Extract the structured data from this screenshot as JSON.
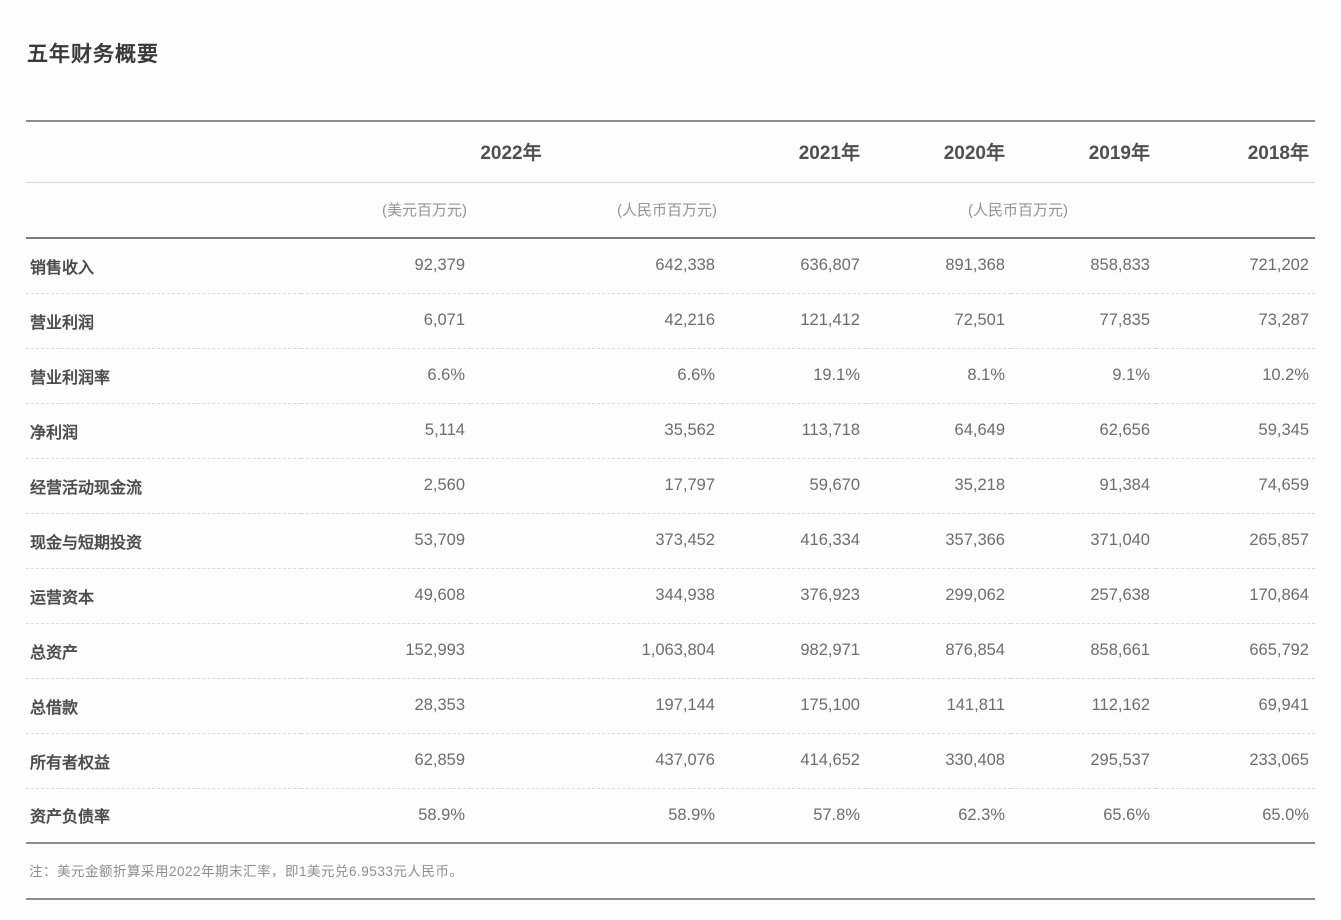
{
  "page": {
    "title": "五年财务概要"
  },
  "table": {
    "col_headers": {
      "y2022": "2022年",
      "y2021": "2021年",
      "y2020": "2020年",
      "y2019": "2019年",
      "y2018": "2018年"
    },
    "unit_headers": {
      "usd": "(美元百万元)",
      "rmb_2022": "(人民币百万元)",
      "rmb_prior_years": "(人民币百万元)"
    },
    "rows": [
      {
        "label": "销售收入",
        "values": [
          "92,379",
          "642,338",
          "636,807",
          "891,368",
          "858,833",
          "721,202"
        ]
      },
      {
        "label": "营业利润",
        "values": [
          "6,071",
          "42,216",
          "121,412",
          "72,501",
          "77,835",
          "73,287"
        ]
      },
      {
        "label": "营业利润率",
        "values": [
          "6.6%",
          "6.6%",
          "19.1%",
          "8.1%",
          "9.1%",
          "10.2%"
        ]
      },
      {
        "label": "净利润",
        "values": [
          "5,114",
          "35,562",
          "113,718",
          "64,649",
          "62,656",
          "59,345"
        ]
      },
      {
        "label": "经营活动现金流",
        "values": [
          "2,560",
          "17,797",
          "59,670",
          "35,218",
          "91,384",
          "74,659"
        ]
      },
      {
        "label": "现金与短期投资",
        "values": [
          "53,709",
          "373,452",
          "416,334",
          "357,366",
          "371,040",
          "265,857"
        ]
      },
      {
        "label": "运营资本",
        "values": [
          "49,608",
          "344,938",
          "376,923",
          "299,062",
          "257,638",
          "170,864"
        ]
      },
      {
        "label": "总资产",
        "values": [
          "152,993",
          "1,063,804",
          "982,971",
          "876,854",
          "858,661",
          "665,792"
        ]
      },
      {
        "label": "总借款",
        "values": [
          "28,353",
          "197,144",
          "175,100",
          "141,811",
          "112,162",
          "69,941"
        ]
      },
      {
        "label": "所有者权益",
        "values": [
          "62,859",
          "437,076",
          "414,652",
          "330,408",
          "295,537",
          "233,065"
        ]
      },
      {
        "label": "资产负债率",
        "values": [
          "58.9%",
          "58.9%",
          "57.8%",
          "62.3%",
          "65.6%",
          "65.0%"
        ]
      }
    ]
  },
  "footnote": {
    "text": "注：美元金额折算采用2022年期末汇率，即1美元兑6.9533元人民币。"
  },
  "colors": {
    "rule_dark": "#7a7a7a",
    "rule_medium": "#8c8c8c",
    "rule_light": "#d9d9d9",
    "row_divider": "#dcdcdc",
    "text_title": "#3a3a3a",
    "text_label": "#4c4c4c",
    "text_number": "#6d6d6d",
    "text_unit": "#949494",
    "text_footnote": "#8e8e8e",
    "background": "#fdfdfd"
  }
}
